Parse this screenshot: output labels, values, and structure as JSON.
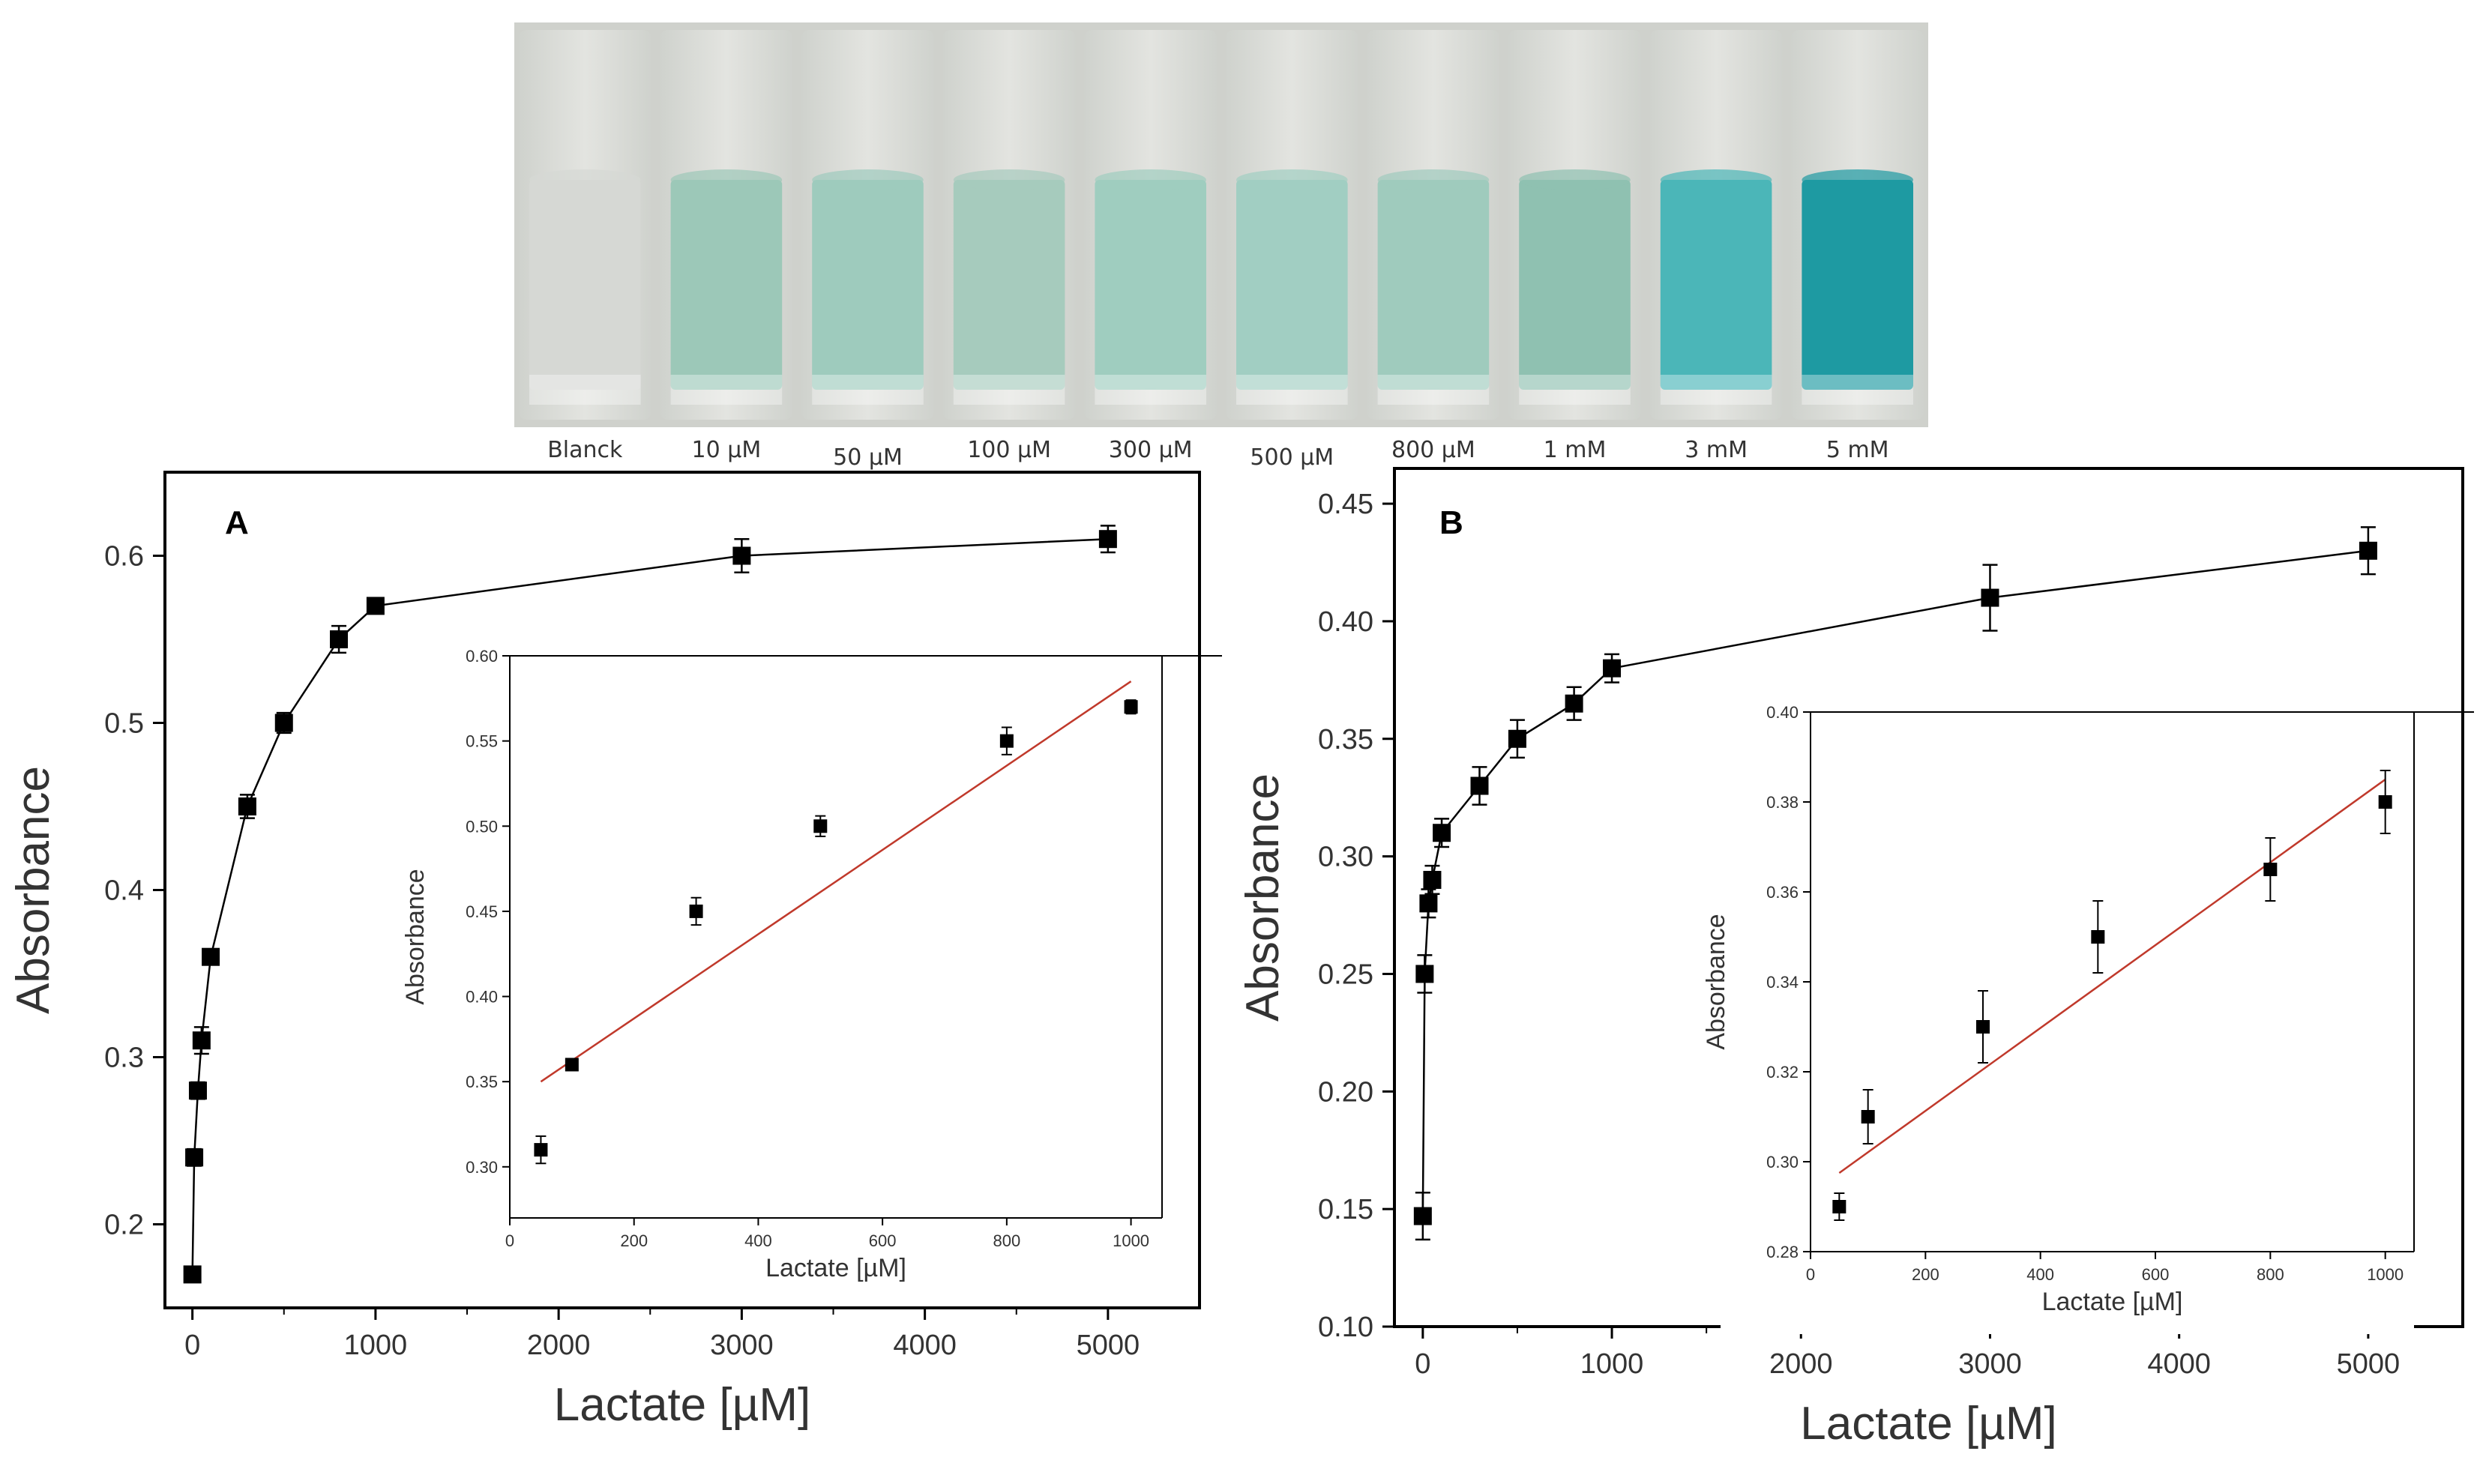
{
  "photo": {
    "labels": [
      "Blanck",
      "10 µM",
      "50 µM",
      "100 µM",
      "300 µM",
      "500 µM",
      "800 µM",
      "1 mM",
      "3 mM",
      "5 mM"
    ],
    "liquid_colors": [
      "#d6d8d4",
      "#9cc8b8",
      "#9ecbbd",
      "#a6cbbd",
      "#9fcdbf",
      "#a1cec2",
      "#9fcbbd",
      "#8fc1b1",
      "#4bb6b8",
      "#1e9aa2"
    ]
  },
  "chart_data": [
    {
      "panel": "A",
      "type": "line",
      "x": [
        0,
        10,
        30,
        50,
        100,
        300,
        500,
        800,
        1000,
        3000,
        5000
      ],
      "y": [
        0.17,
        0.24,
        0.28,
        0.31,
        0.36,
        0.45,
        0.5,
        0.55,
        0.57,
        0.6,
        0.61
      ],
      "yerr": [
        0.003,
        0.005,
        0.005,
        0.008,
        0.004,
        0.007,
        0.006,
        0.008,
        0.003,
        0.01,
        0.008
      ],
      "xlabel": "Lactate [µM]",
      "ylabel": "Absorbance",
      "xlim": [
        -150,
        5500
      ],
      "ylim": [
        0.15,
        0.65
      ],
      "xticks": [
        0,
        1000,
        2000,
        3000,
        4000,
        5000
      ],
      "yticks": [
        0.2,
        0.3,
        0.4,
        0.5,
        0.6
      ],
      "marker_color": "#000000",
      "inset": {
        "type": "scatter",
        "x": [
          50,
          100,
          300,
          500,
          800,
          1000
        ],
        "y": [
          0.31,
          0.36,
          0.45,
          0.5,
          0.55,
          0.57
        ],
        "yerr": [
          0.008,
          0.003,
          0.008,
          0.006,
          0.008,
          0.004
        ],
        "fit": {
          "x": [
            50,
            1000
          ],
          "y": [
            0.35,
            0.585
          ],
          "color": "#c0392b"
        },
        "xlabel": "Lactate [µM]",
        "ylabel": "Absorbance",
        "xlim": [
          0,
          1050
        ],
        "ylim": [
          0.27,
          0.6
        ],
        "xticks": [
          0,
          200,
          400,
          600,
          800,
          1000
        ],
        "yticks": [
          0.3,
          0.35,
          0.4,
          0.45,
          0.5,
          0.55,
          0.6
        ]
      }
    },
    {
      "panel": "B",
      "type": "line",
      "x": [
        0,
        10,
        30,
        50,
        100,
        300,
        500,
        800,
        1000,
        3000,
        5000
      ],
      "y": [
        0.147,
        0.25,
        0.28,
        0.29,
        0.31,
        0.33,
        0.35,
        0.365,
        0.38,
        0.41,
        0.43
      ],
      "yerr": [
        0.01,
        0.008,
        0.006,
        0.006,
        0.006,
        0.008,
        0.008,
        0.007,
        0.006,
        0.014,
        0.01
      ],
      "xlabel": "Lactate [µM]",
      "ylabel": "Absorbance",
      "xlim": [
        -150,
        5500
      ],
      "ylim": [
        0.1,
        0.465
      ],
      "xticks": [
        0,
        1000,
        2000,
        3000,
        4000,
        5000
      ],
      "yticks": [
        0.1,
        0.15,
        0.2,
        0.25,
        0.3,
        0.35,
        0.4,
        0.45
      ],
      "marker_color": "#000000",
      "inset": {
        "type": "scatter",
        "x": [
          50,
          100,
          300,
          500,
          800,
          1000
        ],
        "y": [
          0.29,
          0.31,
          0.33,
          0.35,
          0.365,
          0.38
        ],
        "yerr": [
          0.003,
          0.006,
          0.008,
          0.008,
          0.007,
          0.007
        ],
        "fit": {
          "x": [
            50,
            1000
          ],
          "y": [
            0.2975,
            0.385
          ],
          "color": "#c0392b"
        },
        "xlabel": "Lactate [µM]",
        "ylabel": "Absorbance",
        "xlim": [
          0,
          1050
        ],
        "ylim": [
          0.28,
          0.4
        ],
        "xticks": [
          0,
          200,
          400,
          600,
          800,
          1000
        ],
        "yticks": [
          0.28,
          0.3,
          0.32,
          0.34,
          0.36,
          0.38,
          0.4
        ]
      }
    }
  ]
}
